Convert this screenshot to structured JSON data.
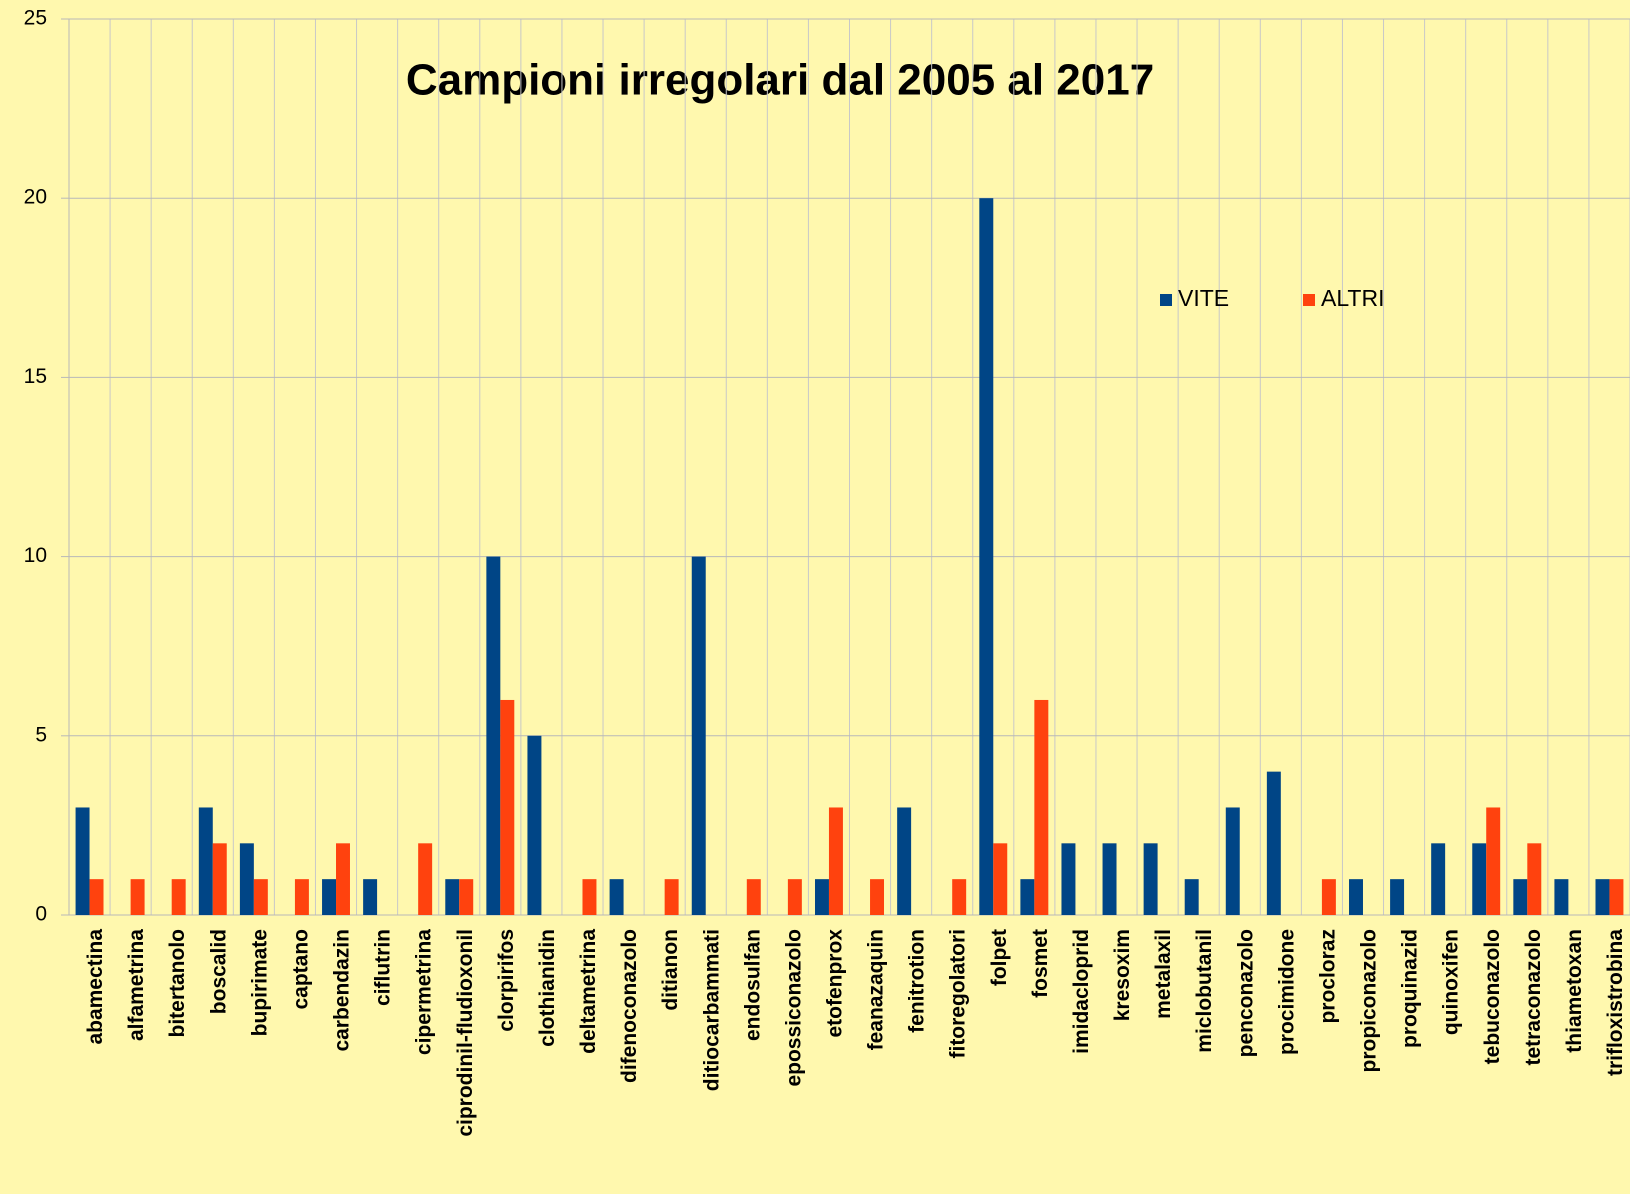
{
  "chart_data": {
    "type": "bar",
    "title": "Campioni irregolari dal 2005 al 2017",
    "categories": [
      "abamectina",
      "alfametrina",
      "bitertanolo",
      "boscalid",
      "bupirimate",
      "captano",
      "carbendazin",
      "ciflutrin",
      "cipermetrina",
      "ciprodinil-fludioxonil",
      "clorpirifos",
      "clothianidin",
      "deltametrina",
      "difenoconazolo",
      "ditianon",
      "ditiocarbammati",
      "endosulfan",
      "epossiconazolo",
      "etofenprox",
      "feanazaquin",
      "fenitrotion",
      "fitoregolatori",
      "folpet",
      "fosmet",
      "imidacloprid",
      "kresoxim",
      "metalaxil",
      "miclobutanil",
      "penconazolo",
      "procimidone",
      "procloraz",
      "propiconazolo",
      "proquinazid",
      "quinoxifen",
      "tebuconazolo",
      "tetraconazolo",
      "thiametoxan",
      "trifloxistrobina"
    ],
    "series": [
      {
        "name": "VITE",
        "color": "#004586",
        "values": [
          3,
          0,
          0,
          3,
          2,
          0,
          1,
          1,
          0,
          1,
          10,
          5,
          0,
          1,
          0,
          10,
          0,
          0,
          1,
          0,
          3,
          0,
          20,
          1,
          2,
          2,
          2,
          1,
          3,
          4,
          0,
          1,
          1,
          2,
          2,
          1,
          1,
          1
        ]
      },
      {
        "name": "ALTRI",
        "color": "#ff420e",
        "values": [
          1,
          1,
          1,
          2,
          1,
          1,
          2,
          0,
          2,
          1,
          6,
          0,
          1,
          0,
          1,
          0,
          1,
          1,
          3,
          1,
          0,
          1,
          2,
          6,
          0,
          0,
          0,
          0,
          0,
          0,
          1,
          0,
          0,
          0,
          3,
          2,
          0,
          1
        ]
      }
    ],
    "ylim": [
      0,
      25
    ],
    "yticks": [
      0,
      5,
      10,
      15,
      20,
      25
    ],
    "grid": true
  }
}
